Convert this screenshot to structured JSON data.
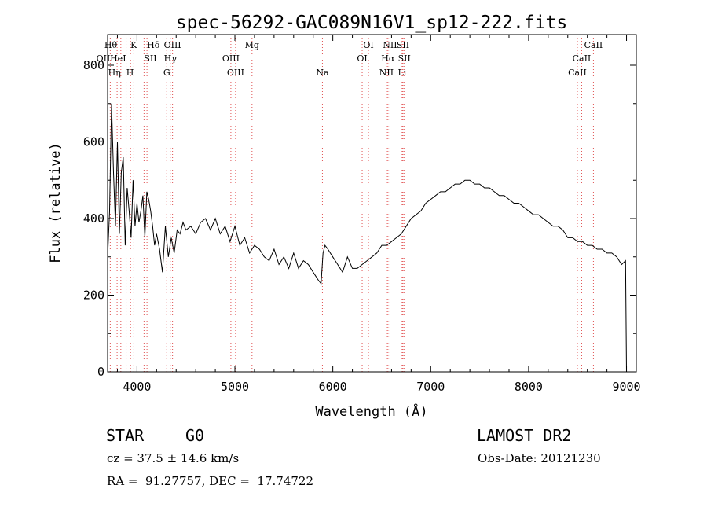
{
  "chart_data": {
    "type": "line",
    "title": "spec-56292-GAC089N16V1_sp12-222.fits",
    "xlabel": "Wavelength (Å)",
    "ylabel": "Flux (relative)",
    "xlim": [
      3700,
      9100
    ],
    "ylim": [
      0,
      880
    ],
    "xticks": [
      4000,
      5000,
      6000,
      7000,
      8000,
      9000
    ],
    "xtick_labels": [
      "4000",
      "5000",
      "6000",
      "7000",
      "8000",
      "9000"
    ],
    "yticks": [
      0,
      200,
      400,
      600,
      800
    ],
    "ytick_labels": [
      "0",
      "200",
      "400",
      "600",
      "800"
    ],
    "grid": false,
    "series": [
      {
        "x": [
          3700,
          3720,
          3740,
          3760,
          3780,
          3800,
          3820,
          3840,
          3860,
          3880,
          3900,
          3920,
          3940,
          3960,
          3980,
          4000,
          4020,
          4040,
          4060,
          4080,
          4100,
          4120,
          4140,
          4160,
          4180,
          4200,
          4230,
          4260,
          4290,
          4320,
          4350,
          4380,
          4410,
          4440,
          4470,
          4500,
          4550,
          4600,
          4650,
          4700,
          4750,
          4800,
          4850,
          4900,
          4950,
          5000,
          5050,
          5100,
          5150,
          5200,
          5250,
          5300,
          5350,
          5400,
          5450,
          5500,
          5550,
          5600,
          5650,
          5700,
          5750,
          5800,
          5850,
          5880,
          5900,
          5920,
          5950,
          6000,
          6050,
          6100,
          6150,
          6200,
          6250,
          6300,
          6350,
          6400,
          6450,
          6500,
          6550,
          6600,
          6650,
          6700,
          6750,
          6800,
          6850,
          6900,
          6950,
          7000,
          7050,
          7100,
          7150,
          7200,
          7250,
          7300,
          7350,
          7400,
          7450,
          7500,
          7550,
          7600,
          7650,
          7700,
          7750,
          7800,
          7850,
          7900,
          7950,
          8000,
          8050,
          8100,
          8150,
          8200,
          8250,
          8300,
          8350,
          8400,
          8450,
          8500,
          8550,
          8600,
          8650,
          8700,
          8750,
          8800,
          8850,
          8900,
          8950,
          8990,
          9000
        ],
        "y": [
          300,
          420,
          700,
          520,
          380,
          600,
          360,
          520,
          560,
          330,
          480,
          420,
          350,
          500,
          380,
          440,
          390,
          420,
          460,
          350,
          470,
          450,
          420,
          380,
          330,
          360,
          320,
          260,
          380,
          300,
          350,
          310,
          370,
          360,
          390,
          370,
          380,
          360,
          390,
          400,
          370,
          400,
          360,
          380,
          340,
          380,
          330,
          350,
          310,
          330,
          320,
          300,
          290,
          320,
          280,
          300,
          270,
          310,
          270,
          290,
          280,
          260,
          240,
          230,
          310,
          330,
          320,
          300,
          280,
          260,
          300,
          270,
          270,
          280,
          290,
          300,
          310,
          330,
          330,
          340,
          350,
          360,
          380,
          400,
          410,
          420,
          440,
          450,
          460,
          470,
          470,
          480,
          490,
          490,
          500,
          500,
          490,
          490,
          480,
          480,
          470,
          460,
          460,
          450,
          440,
          440,
          430,
          420,
          410,
          410,
          400,
          390,
          380,
          380,
          370,
          350,
          350,
          340,
          340,
          330,
          330,
          320,
          320,
          310,
          310,
          300,
          280,
          290,
          0
        ]
      }
    ],
    "line_markers": [
      {
        "label": "OII",
        "x": 3727,
        "row": 2,
        "align": "right"
      },
      {
        "label": "Hθ",
        "x": 3797,
        "row": 1,
        "align": "right"
      },
      {
        "label": "Hη",
        "x": 3835,
        "row": 3,
        "align": "right"
      },
      {
        "label": "HeI",
        "x": 3889,
        "row": 2,
        "align": "right"
      },
      {
        "label": "K",
        "x": 3934,
        "row": 1,
        "align": "left"
      },
      {
        "label": "SII",
        "x": 4072,
        "row": 2,
        "align": "left"
      },
      {
        "label": "H",
        "x": 3968,
        "row": 3,
        "align": "right"
      },
      {
        "label": "Hδ",
        "x": 4102,
        "row": 1,
        "align": "left"
      },
      {
        "label": "Hγ",
        "x": 4340,
        "row": 2,
        "align": "center"
      },
      {
        "label": "OIII",
        "x": 4363,
        "row": 1,
        "align": "center"
      },
      {
        "label": "G",
        "x": 4304,
        "row": 3,
        "align": "center"
      },
      {
        "label": "OIII",
        "x": 4959,
        "row": 2,
        "align": "center"
      },
      {
        "label": "OIII",
        "x": 5007,
        "row": 3,
        "align": "center"
      },
      {
        "label": "Mg",
        "x": 5175,
        "row": 1,
        "align": "center"
      },
      {
        "label": "Na",
        "x": 5894,
        "row": 3,
        "align": "center"
      },
      {
        "label": "OI",
        "x": 6300,
        "row": 2,
        "align": "center"
      },
      {
        "label": "OI",
        "x": 6364,
        "row": 1,
        "align": "center"
      },
      {
        "label": "NII",
        "x": 6548,
        "row": 3,
        "align": "center"
      },
      {
        "label": "Hα",
        "x": 6563,
        "row": 2,
        "align": "center"
      },
      {
        "label": "NII",
        "x": 6584,
        "row": 1,
        "align": "center"
      },
      {
        "label": "SII",
        "x": 6717,
        "row": 1,
        "align": "center"
      },
      {
        "label": "SII",
        "x": 6731,
        "row": 2,
        "align": "center"
      },
      {
        "label": "Li",
        "x": 6708,
        "row": 3,
        "align": "center"
      },
      {
        "label": "CaII",
        "x": 8498,
        "row": 3,
        "align": "center"
      },
      {
        "label": "CaII",
        "x": 8542,
        "row": 2,
        "align": "center"
      },
      {
        "label": "CaII",
        "x": 8662,
        "row": 1,
        "align": "center"
      }
    ]
  },
  "info": {
    "object_class": "STAR",
    "subclass": "G0",
    "survey": "LAMOST DR2",
    "cz": "cz = 37.5 ± 14.6 km/s",
    "obs_date": "Obs-Date: 20121230",
    "coords": "RA =  91.27757, DEC =  17.74722"
  },
  "colors": {
    "axis": "#000000",
    "spectrum": "#000000",
    "marker_line": "#e05050"
  }
}
